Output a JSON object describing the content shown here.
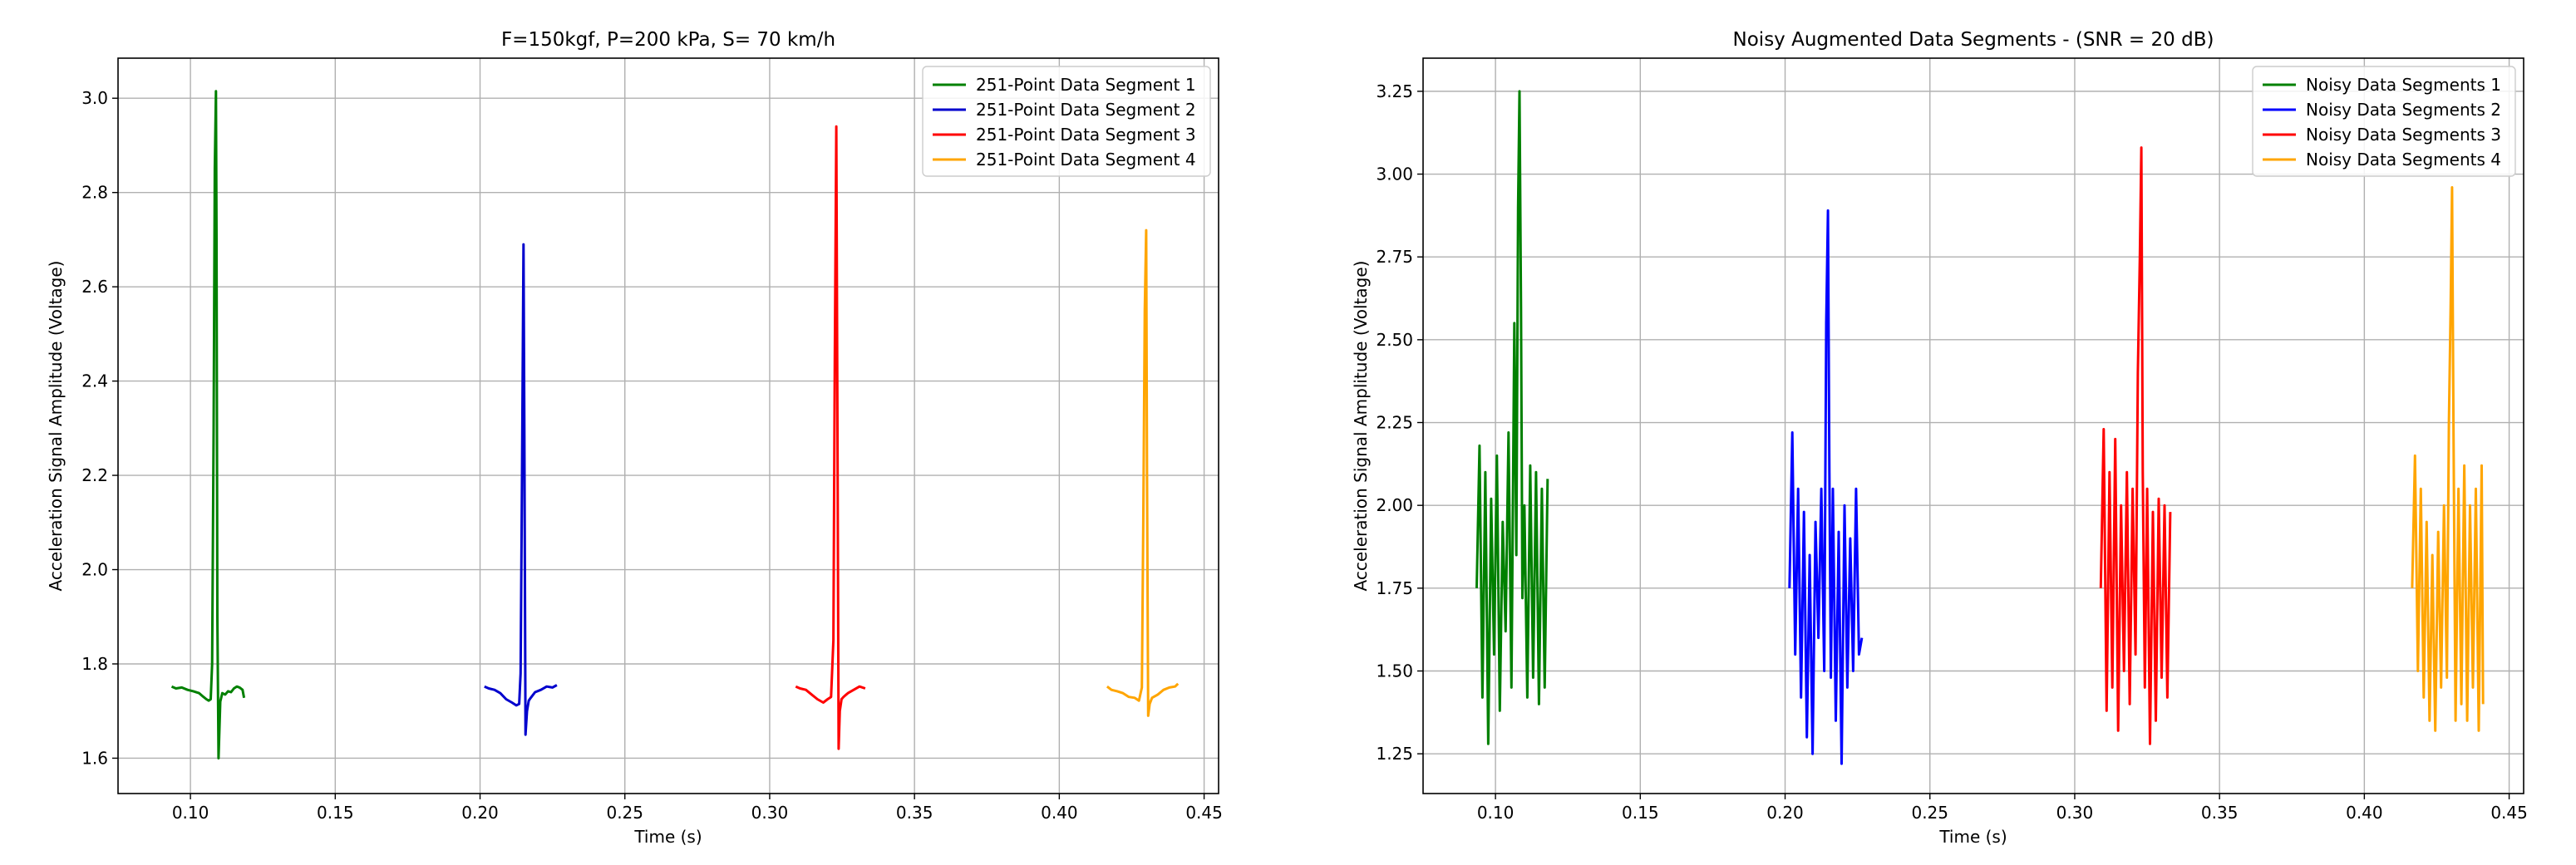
{
  "figure": {
    "charts": 2
  },
  "chart_data": [
    {
      "type": "line",
      "title": "F=150kgf, P=200 kPa, S= 70 km/h",
      "xlabel": "Time (s)",
      "ylabel": "Acceleration Signal Amplitude (Voltage)",
      "xlim": [
        0.075,
        0.455
      ],
      "ylim": [
        1.525,
        3.085
      ],
      "xticks": [
        0.1,
        0.15,
        0.2,
        0.25,
        0.3,
        0.35,
        0.4,
        0.45
      ],
      "xtick_labels": [
        "0.10",
        "0.15",
        "0.20",
        "0.25",
        "0.30",
        "0.35",
        "0.40",
        "0.45"
      ],
      "yticks": [
        1.6,
        1.8,
        2.0,
        2.2,
        2.4,
        2.6,
        2.8,
        3.0
      ],
      "ytick_labels": [
        "1.6",
        "1.8",
        "2.0",
        "2.2",
        "2.4",
        "2.6",
        "2.8",
        "3.0"
      ],
      "grid": true,
      "legend_position": "top-right",
      "series": [
        {
          "name": "251-Point Data Segment 1",
          "color": "#008000",
          "x": [
            0.0935,
            0.095,
            0.097,
            0.099,
            0.101,
            0.103,
            0.1045,
            0.1055,
            0.1063,
            0.107,
            0.1075,
            0.108,
            0.1084,
            0.1088,
            0.109,
            0.1093,
            0.1097,
            0.1103,
            0.111,
            0.112,
            0.113,
            0.114,
            0.115,
            0.116,
            0.117,
            0.118,
            0.1185
          ],
          "y": [
            1.752,
            1.748,
            1.75,
            1.745,
            1.742,
            1.738,
            1.73,
            1.725,
            1.722,
            1.725,
            1.8,
            2.3,
            2.85,
            3.015,
            2.7,
            1.9,
            1.6,
            1.72,
            1.738,
            1.735,
            1.742,
            1.74,
            1.748,
            1.752,
            1.75,
            1.745,
            1.728
          ]
        },
        {
          "name": "251-Point Data Segment 2",
          "color": "#0000CD",
          "x": [
            0.2015,
            0.203,
            0.205,
            0.207,
            0.209,
            0.211,
            0.2125,
            0.2135,
            0.214,
            0.2145,
            0.215,
            0.2153,
            0.2157,
            0.2162,
            0.2168,
            0.2175,
            0.219,
            0.221,
            0.223,
            0.225,
            0.2265
          ],
          "y": [
            1.752,
            1.748,
            1.745,
            1.738,
            1.725,
            1.718,
            1.712,
            1.715,
            1.78,
            2.2,
            2.69,
            2.3,
            1.65,
            1.7,
            1.722,
            1.728,
            1.74,
            1.745,
            1.752,
            1.75,
            1.755
          ]
        },
        {
          "name": "251-Point Data Segment 3",
          "color": "#FF0000",
          "x": [
            0.309,
            0.3105,
            0.3125,
            0.3145,
            0.3165,
            0.3185,
            0.32,
            0.3212,
            0.322,
            0.3225,
            0.323,
            0.3234,
            0.3238,
            0.3242,
            0.3248,
            0.3255,
            0.327,
            0.329,
            0.331,
            0.333
          ],
          "y": [
            1.752,
            1.748,
            1.745,
            1.735,
            1.725,
            1.718,
            1.725,
            1.73,
            1.85,
            2.45,
            2.94,
            2.3,
            1.62,
            1.7,
            1.725,
            1.73,
            1.738,
            1.745,
            1.752,
            1.748
          ]
        },
        {
          "name": "251-Point Data Segment 4",
          "color": "#FFA500",
          "x": [
            0.4165,
            0.418,
            0.42,
            0.422,
            0.424,
            0.426,
            0.4275,
            0.4285,
            0.429,
            0.4295,
            0.43,
            0.4303,
            0.4307,
            0.4312,
            0.432,
            0.434,
            0.436,
            0.438,
            0.44,
            0.441
          ],
          "y": [
            1.752,
            1.745,
            1.742,
            1.738,
            1.73,
            1.728,
            1.722,
            1.75,
            2.1,
            2.55,
            2.72,
            2.2,
            1.69,
            1.715,
            1.728,
            1.735,
            1.745,
            1.75,
            1.752,
            1.758
          ]
        }
      ]
    },
    {
      "type": "line",
      "title": "Noisy Augmented Data Segments - (SNR = 20 dB)",
      "xlabel": "Time (s)",
      "ylabel": "Acceleration Signal Amplitude (Voltage)",
      "xlim": [
        0.075,
        0.455
      ],
      "ylim": [
        1.13,
        3.35
      ],
      "xticks": [
        0.1,
        0.15,
        0.2,
        0.25,
        0.3,
        0.35,
        0.4,
        0.45
      ],
      "xtick_labels": [
        "0.10",
        "0.15",
        "0.20",
        "0.25",
        "0.30",
        "0.35",
        "0.40",
        "0.45"
      ],
      "yticks": [
        1.25,
        1.5,
        1.75,
        2.0,
        2.25,
        2.5,
        2.75,
        3.0,
        3.25
      ],
      "ytick_labels": [
        "1.25",
        "1.50",
        "1.75",
        "2.00",
        "2.25",
        "2.50",
        "2.75",
        "3.00",
        "3.25"
      ],
      "grid": true,
      "legend_position": "top-right",
      "series": [
        {
          "name": "Noisy Data Segments 1",
          "color": "#008000",
          "x": [
            0.0935,
            0.0945,
            0.0955,
            0.0965,
            0.0975,
            0.0985,
            0.0995,
            0.1005,
            0.1015,
            0.1025,
            0.1035,
            0.1045,
            0.1055,
            0.1065,
            0.1072,
            0.1078,
            0.1083,
            0.1088,
            0.1093,
            0.11,
            0.111,
            0.112,
            0.113,
            0.114,
            0.115,
            0.116,
            0.117,
            0.118
          ],
          "y": [
            1.75,
            2.18,
            1.42,
            2.1,
            1.28,
            2.02,
            1.55,
            2.15,
            1.38,
            1.95,
            1.62,
            2.22,
            1.45,
            2.55,
            1.85,
            2.9,
            3.25,
            2.6,
            1.72,
            2.0,
            1.42,
            2.12,
            1.48,
            2.1,
            1.4,
            2.05,
            1.45,
            2.08
          ]
        },
        {
          "name": "Noisy Data Segments 2",
          "color": "#0000FF",
          "x": [
            0.2015,
            0.2025,
            0.2035,
            0.2045,
            0.2055,
            0.2065,
            0.2075,
            0.2085,
            0.2095,
            0.2105,
            0.2115,
            0.2125,
            0.2135,
            0.2142,
            0.2148,
            0.2153,
            0.2158,
            0.2165,
            0.2175,
            0.2185,
            0.2195,
            0.2205,
            0.2215,
            0.2225,
            0.2235,
            0.2245,
            0.2255,
            0.2265
          ],
          "y": [
            1.75,
            2.22,
            1.55,
            2.05,
            1.42,
            1.98,
            1.3,
            1.85,
            1.25,
            1.95,
            1.6,
            2.05,
            1.5,
            2.55,
            2.89,
            2.1,
            1.48,
            2.05,
            1.35,
            1.92,
            1.22,
            2.0,
            1.45,
            1.9,
            1.5,
            2.05,
            1.55,
            1.6
          ]
        },
        {
          "name": "Noisy Data Segments 3",
          "color": "#FF0000",
          "x": [
            0.309,
            0.31,
            0.311,
            0.312,
            0.313,
            0.314,
            0.315,
            0.316,
            0.317,
            0.318,
            0.319,
            0.32,
            0.321,
            0.3218,
            0.3225,
            0.323,
            0.3235,
            0.3242,
            0.325,
            0.326,
            0.327,
            0.328,
            0.329,
            0.33,
            0.331,
            0.332,
            0.333
          ],
          "y": [
            1.75,
            2.23,
            1.38,
            2.1,
            1.45,
            2.2,
            1.32,
            2.0,
            1.5,
            2.1,
            1.4,
            2.05,
            1.55,
            2.4,
            2.75,
            3.08,
            2.1,
            1.45,
            2.05,
            1.28,
            1.98,
            1.35,
            2.02,
            1.48,
            2.0,
            1.42,
            1.98
          ]
        },
        {
          "name": "Noisy Data Segments 4",
          "color": "#FFA500",
          "x": [
            0.4165,
            0.4175,
            0.4185,
            0.4195,
            0.4205,
            0.4215,
            0.4225,
            0.4235,
            0.4245,
            0.4255,
            0.4265,
            0.4275,
            0.4285,
            0.4292,
            0.4298,
            0.4303,
            0.4308,
            0.4315,
            0.4325,
            0.4335,
            0.4345,
            0.4355,
            0.4365,
            0.4375,
            0.4385,
            0.4395,
            0.4405,
            0.441
          ],
          "y": [
            1.75,
            2.15,
            1.5,
            2.05,
            1.42,
            1.95,
            1.35,
            1.85,
            1.32,
            1.92,
            1.45,
            2.0,
            1.48,
            2.25,
            2.6,
            2.96,
            2.2,
            1.35,
            2.05,
            1.4,
            2.12,
            1.35,
            2.0,
            1.45,
            2.05,
            1.32,
            2.12,
            1.4
          ]
        }
      ]
    }
  ]
}
